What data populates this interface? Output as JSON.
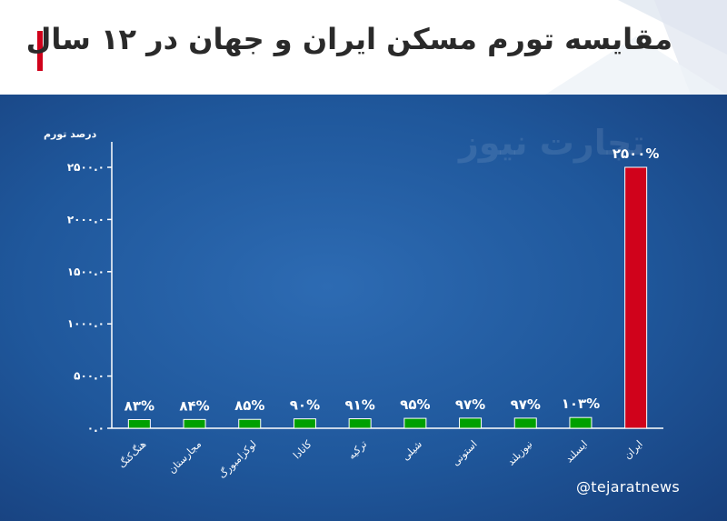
{
  "title": "مقایسه تورم مسکن ایران و جهان در ۱۲ سال",
  "watermark": "تجارت نیوز",
  "handle": "@tejaratnews",
  "colors": {
    "panel": "#1f579b",
    "accent_red": "#d0021b",
    "bar_green": "#00a000"
  },
  "chart_data": {
    "type": "bar",
    "ylabel": "درصد تورم",
    "ylim": [
      0,
      2500
    ],
    "yticks": [
      0,
      500,
      1000,
      1500,
      2000,
      2500
    ],
    "ytick_labels": [
      "۰.۰",
      "۵۰۰.۰",
      "۱۰۰۰.۰",
      "۱۵۰۰.۰",
      "۲۰۰۰.۰",
      "۲۵۰۰.۰"
    ],
    "grid": false,
    "categories": [
      "هنگ‌کنگ",
      "مجارستان",
      "لوکزامبورگ",
      "کانادا",
      "ترکیه",
      "شیلی",
      "استونی",
      "نیوزیلند",
      "ایسلند",
      "ایران"
    ],
    "values": [
      83,
      84,
      85,
      90,
      91,
      95,
      97,
      97,
      103,
      2500
    ],
    "value_labels": [
      "۸۳%",
      "۸۴%",
      "۸۵%",
      "۹۰%",
      "۹۱%",
      "۹۵%",
      "۹۷%",
      "۹۷%",
      "۱۰۳%",
      "۲۵۰۰%"
    ],
    "bar_colors": [
      "#00a000",
      "#00a000",
      "#00a000",
      "#00a000",
      "#00a000",
      "#00a000",
      "#00a000",
      "#00a000",
      "#00a000",
      "#d0021b"
    ]
  }
}
